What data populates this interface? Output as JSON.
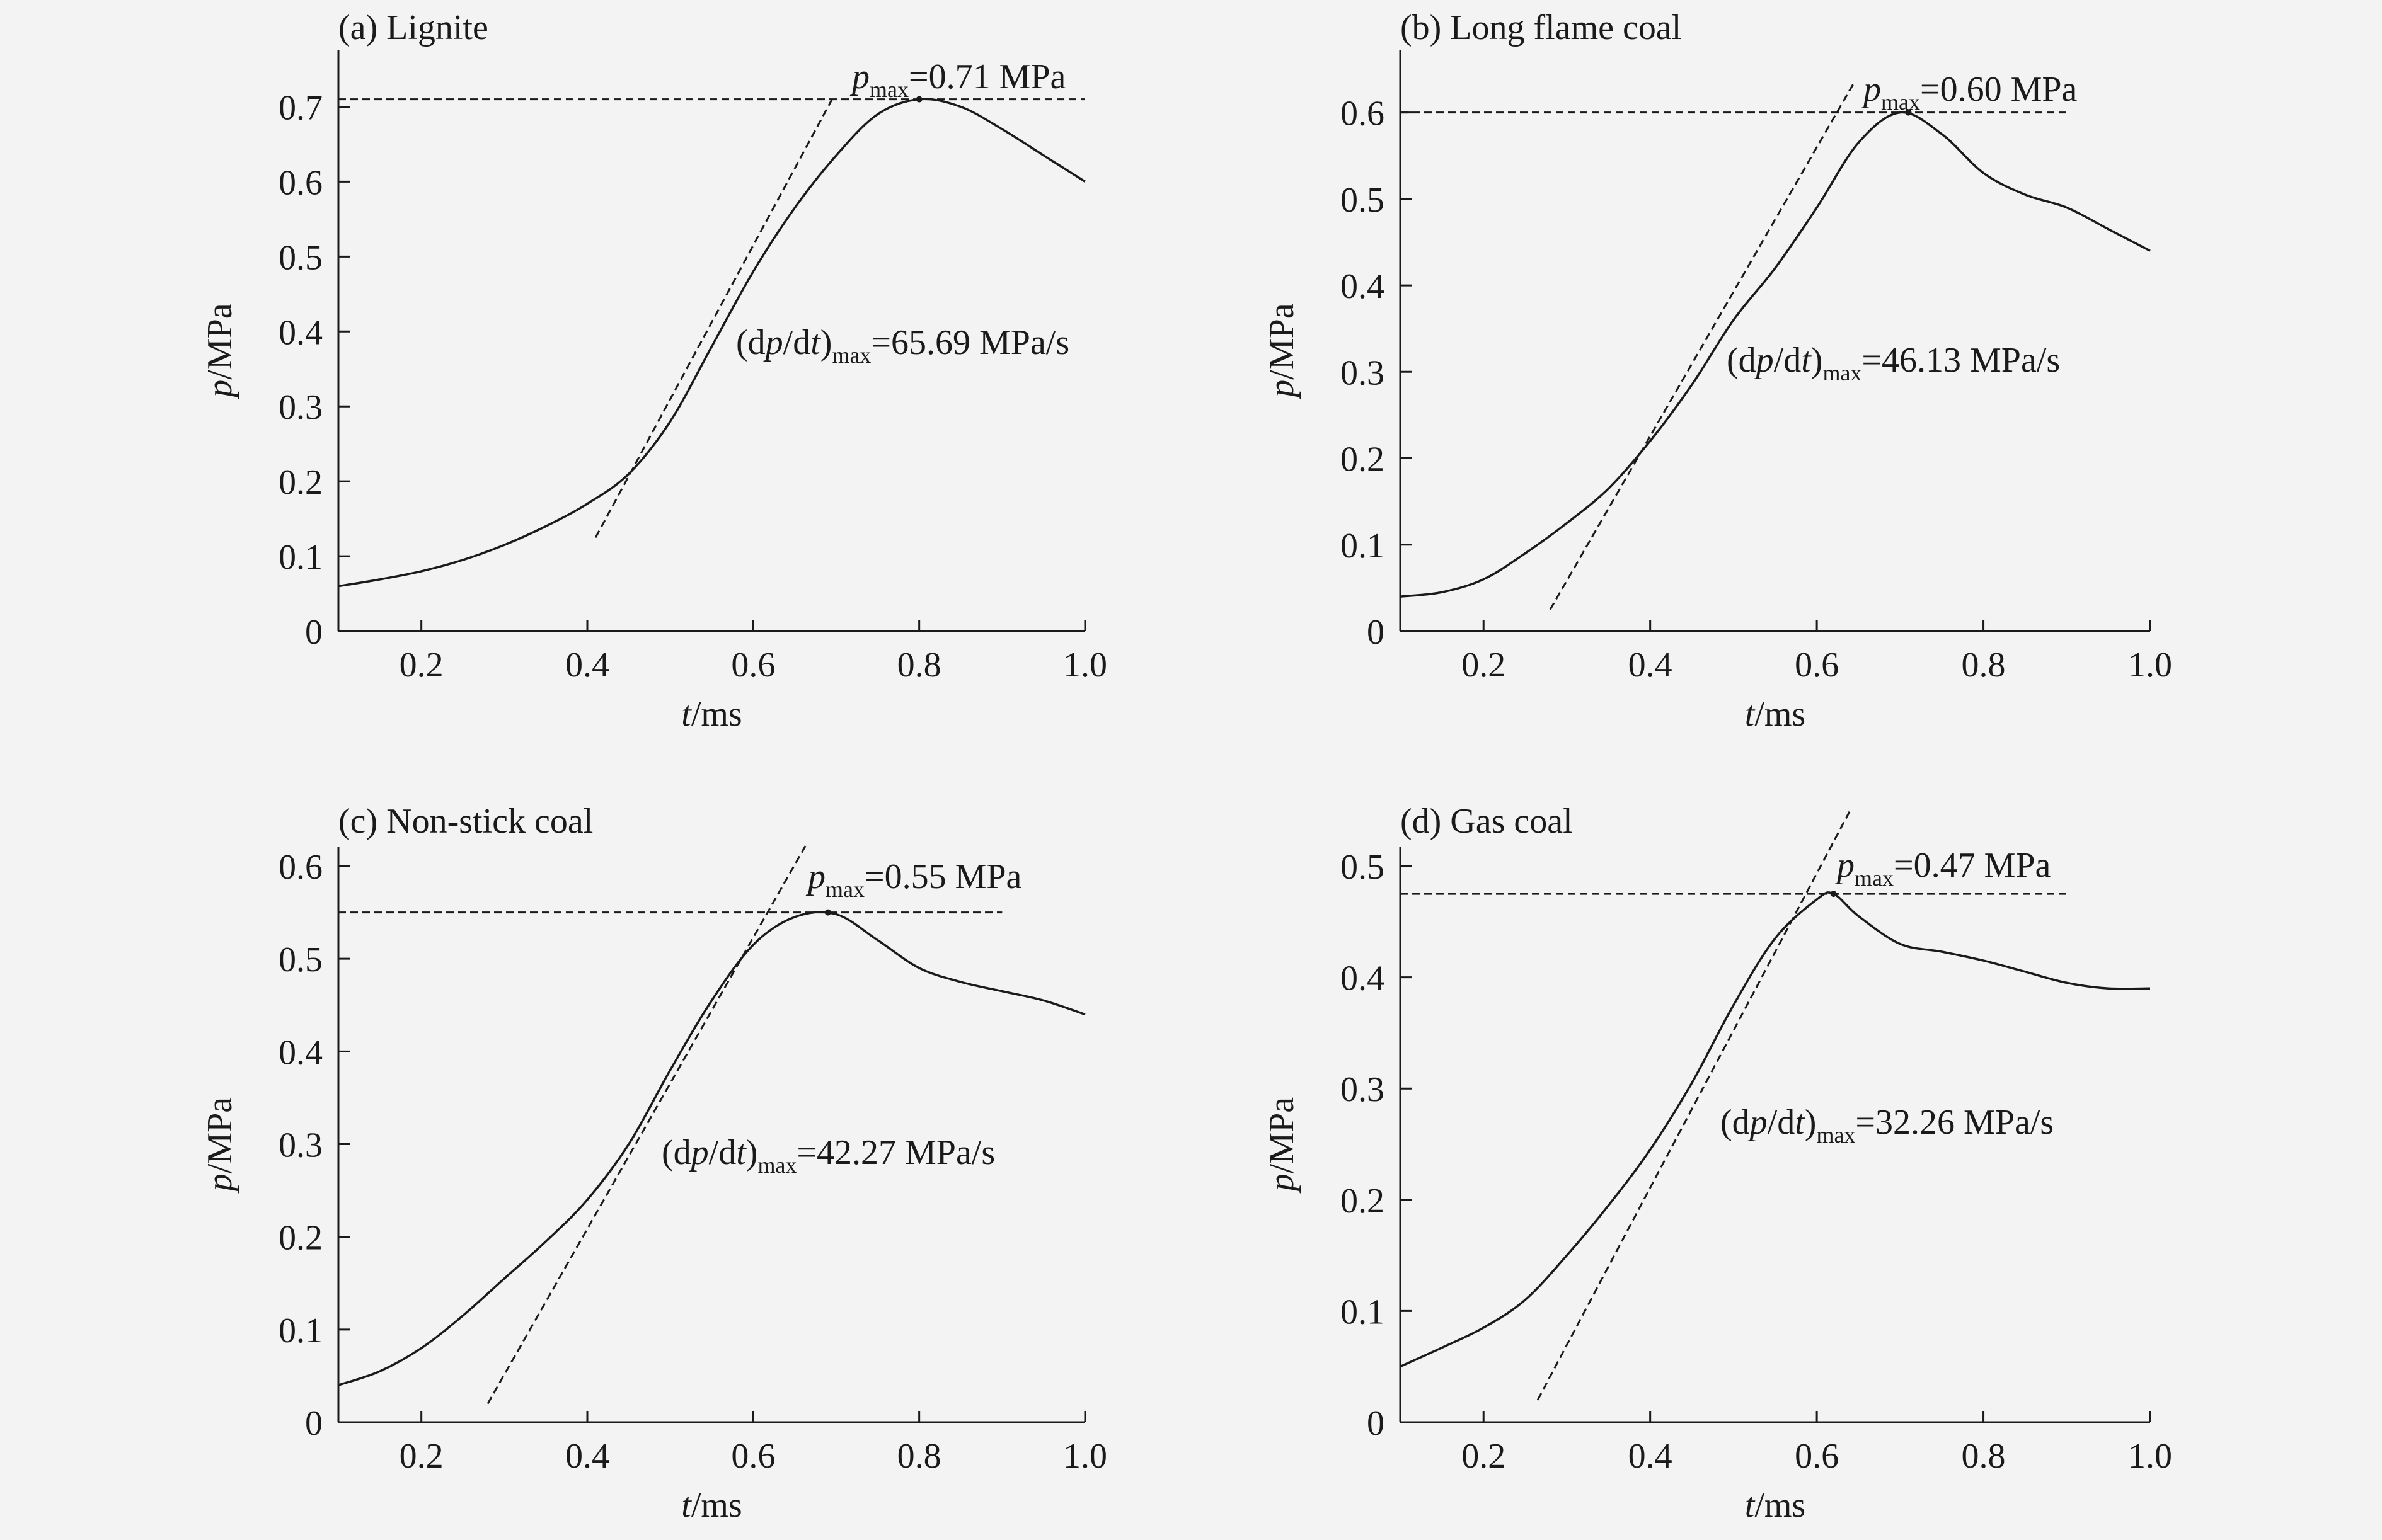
{
  "colors": {
    "background": "#f3f3f3",
    "ink": "#1a1a1a"
  },
  "chart_data": [
    {
      "type": "line",
      "title": "(a) Lignite",
      "xlabel": {
        "var": "t",
        "unit": "/ms"
      },
      "ylabel": {
        "var": "p",
        "unit": "/MPa"
      },
      "xlim": [
        0.1,
        1.0
      ],
      "ylim": [
        0,
        0.75
      ],
      "xticks": [
        0.2,
        0.4,
        0.6,
        0.8,
        1.0
      ],
      "xtick_labels": [
        "0.2",
        "0.4",
        "0.6",
        "0.8",
        "1.0"
      ],
      "yticks": [
        0,
        0.1,
        0.2,
        0.3,
        0.4,
        0.5,
        0.6,
        0.7
      ],
      "ytick_labels": [
        "0",
        "0.1",
        "0.2",
        "0.3",
        "0.4",
        "0.5",
        "0.6",
        "0.7"
      ],
      "series": [
        {
          "x": [
            0.1,
            0.15,
            0.2,
            0.25,
            0.3,
            0.35,
            0.4,
            0.45,
            0.5,
            0.55,
            0.6,
            0.65,
            0.7,
            0.75,
            0.8,
            0.85,
            0.9,
            0.95,
            1.0
          ],
          "y": [
            0.06,
            0.069,
            0.08,
            0.095,
            0.115,
            0.14,
            0.17,
            0.21,
            0.28,
            0.38,
            0.48,
            0.565,
            0.635,
            0.69,
            0.71,
            0.7,
            0.67,
            0.635,
            0.6
          ]
        }
      ],
      "pmax": {
        "value": 0.71,
        "x_range": [
          0.1,
          1.0
        ],
        "peak_x": 0.8,
        "label_var": "p",
        "label_sub": "max",
        "label_value": "=0.71 MPa"
      },
      "tangent": {
        "x": [
          0.41,
          0.695
        ],
        "y": [
          0.125,
          0.71
        ]
      },
      "rate": {
        "prefix": "(d",
        "var1": "p",
        "slash": "/d",
        "var2": "t",
        "suffix": ")",
        "sub": "max",
        "value": "=65.69 MPa/s"
      }
    },
    {
      "type": "line",
      "title": "(b) Long flame coal",
      "xlabel": {
        "var": "t",
        "unit": "/ms"
      },
      "ylabel": {
        "var": "p",
        "unit": "/MPa"
      },
      "xlim": [
        0.1,
        1.0
      ],
      "ylim": [
        0,
        0.65
      ],
      "xticks": [
        0.2,
        0.4,
        0.6,
        0.8,
        1.0
      ],
      "xtick_labels": [
        "0.2",
        "0.4",
        "0.6",
        "0.8",
        "1.0"
      ],
      "yticks": [
        0,
        0.1,
        0.2,
        0.3,
        0.4,
        0.5,
        0.6
      ],
      "ytick_labels": [
        "0",
        "0.1",
        "0.2",
        "0.3",
        "0.4",
        "0.5",
        "0.6"
      ],
      "series": [
        {
          "x": [
            0.1,
            0.15,
            0.2,
            0.25,
            0.3,
            0.35,
            0.4,
            0.45,
            0.5,
            0.55,
            0.6,
            0.65,
            0.7,
            0.75,
            0.8,
            0.85,
            0.9,
            0.95,
            1.0
          ],
          "y": [
            0.04,
            0.045,
            0.06,
            0.09,
            0.125,
            0.165,
            0.22,
            0.285,
            0.36,
            0.42,
            0.49,
            0.565,
            0.6,
            0.575,
            0.53,
            0.505,
            0.49,
            0.465,
            0.44
          ]
        }
      ],
      "pmax": {
        "value": 0.6,
        "x_range": [
          0.1,
          0.9
        ],
        "peak_x": 0.71,
        "label_var": "p",
        "label_sub": "max",
        "label_value": "=0.60 MPa"
      },
      "tangent": {
        "x": [
          0.28,
          0.645
        ],
        "y": [
          0.025,
          0.635
        ]
      },
      "rate": {
        "prefix": "(d",
        "var1": "p",
        "slash": "/d",
        "var2": "t",
        "suffix": ")",
        "sub": "max",
        "value": "=46.13 MPa/s"
      }
    },
    {
      "type": "line",
      "title": "(c) Non-stick coal",
      "xlabel": {
        "var": "t",
        "unit": "/ms"
      },
      "ylabel": {
        "var": "p",
        "unit": "/MPa"
      },
      "xlim": [
        0.1,
        1.0
      ],
      "ylim": [
        0,
        0.6
      ],
      "xticks": [
        0.2,
        0.4,
        0.6,
        0.8,
        1.0
      ],
      "xtick_labels": [
        "0.2",
        "0.4",
        "0.6",
        "0.8",
        "1.0"
      ],
      "yticks": [
        0,
        0.1,
        0.2,
        0.3,
        0.4,
        0.5,
        0.6
      ],
      "ytick_labels": [
        "0",
        "0.1",
        "0.2",
        "0.3",
        "0.4",
        "0.5",
        "0.6"
      ],
      "series": [
        {
          "x": [
            0.1,
            0.15,
            0.2,
            0.25,
            0.3,
            0.35,
            0.4,
            0.45,
            0.5,
            0.55,
            0.6,
            0.65,
            0.7,
            0.75,
            0.8,
            0.85,
            0.9,
            0.95,
            1.0
          ],
          "y": [
            0.04,
            0.055,
            0.08,
            0.115,
            0.155,
            0.195,
            0.24,
            0.3,
            0.38,
            0.455,
            0.515,
            0.545,
            0.548,
            0.52,
            0.49,
            0.475,
            0.465,
            0.455,
            0.44
          ]
        }
      ],
      "pmax": {
        "value": 0.55,
        "x_range": [
          0.1,
          0.9
        ],
        "peak_x": 0.69,
        "label_var": "p",
        "label_sub": "max",
        "label_value": "=0.55 MPa"
      },
      "tangent": {
        "x": [
          0.28,
          0.665
        ],
        "y": [
          0.02,
          0.625
        ]
      },
      "rate": {
        "prefix": "(d",
        "var1": "p",
        "slash": "/d",
        "var2": "t",
        "suffix": ")",
        "sub": "max",
        "value": "=42.27  MPa/s"
      }
    },
    {
      "type": "line",
      "title": "(d) Gas coal",
      "xlabel": {
        "var": "t",
        "unit": "/ms"
      },
      "ylabel": {
        "var": "p",
        "unit": "/MPa"
      },
      "xlim": [
        0.1,
        1.0
      ],
      "ylim": [
        0,
        0.5
      ],
      "xticks": [
        0.2,
        0.4,
        0.6,
        0.8,
        1.0
      ],
      "xtick_labels": [
        "0.2",
        "0.4",
        "0.6",
        "0.8",
        "1.0"
      ],
      "yticks": [
        0,
        0.1,
        0.2,
        0.3,
        0.4,
        0.5
      ],
      "ytick_labels": [
        "0",
        "0.1",
        "0.2",
        "0.3",
        "0.4",
        "0.5"
      ],
      "series": [
        {
          "x": [
            0.1,
            0.15,
            0.2,
            0.25,
            0.3,
            0.35,
            0.4,
            0.45,
            0.5,
            0.55,
            0.6,
            0.62,
            0.65,
            0.7,
            0.75,
            0.8,
            0.85,
            0.9,
            0.95,
            1.0
          ],
          "y": [
            0.05,
            0.067,
            0.085,
            0.11,
            0.15,
            0.195,
            0.245,
            0.305,
            0.375,
            0.435,
            0.47,
            0.475,
            0.455,
            0.43,
            0.423,
            0.415,
            0.405,
            0.395,
            0.39,
            0.39
          ]
        }
      ],
      "pmax": {
        "value": 0.475,
        "x_range": [
          0.1,
          0.9
        ],
        "peak_x": 0.62,
        "label_var": "p",
        "label_sub": "max",
        "label_value": "=0.47 MPa"
      },
      "tangent": {
        "x": [
          0.265,
          0.64
        ],
        "y": [
          0.02,
          0.55
        ]
      },
      "rate": {
        "prefix": "(d",
        "var1": "p",
        "slash": "/d",
        "var2": "t",
        "suffix": ")",
        "sub": "max",
        "value": "=32.26  MPa/s"
      }
    }
  ]
}
